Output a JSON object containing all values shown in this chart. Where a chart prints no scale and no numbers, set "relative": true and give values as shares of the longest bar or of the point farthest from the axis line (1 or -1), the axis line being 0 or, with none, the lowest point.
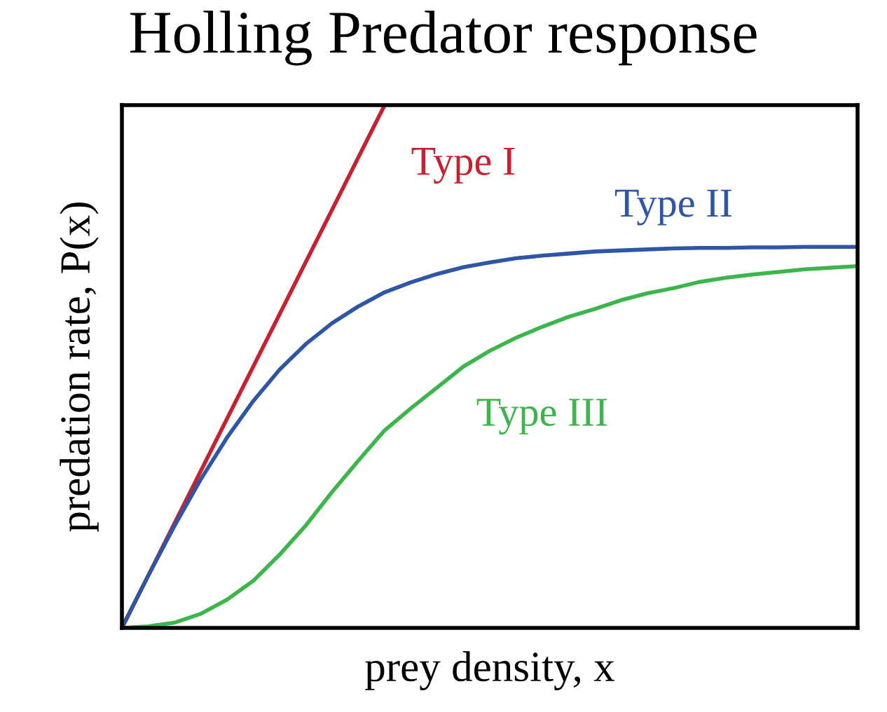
{
  "chart_data": {
    "type": "line",
    "title": "Holling Predator response",
    "xlabel": "prey density, x",
    "ylabel": "predation rate, P(x)",
    "relative": true,
    "categories": [
      null,
      null,
      null,
      null,
      null,
      null,
      null,
      null,
      null,
      null,
      null,
      null,
      null,
      null,
      null,
      null,
      null,
      null,
      null,
      null,
      null,
      null,
      null,
      null,
      null,
      null,
      null,
      null,
      null
    ],
    "series": [
      {
        "name": "Type I",
        "color": "#c8202f",
        "values": [
          0,
          0.1,
          0.2,
          0.3,
          0.4,
          0.5,
          0.6,
          0.7,
          0.8,
          0.9,
          1.0,
          null,
          null,
          null,
          null,
          null,
          null,
          null,
          null,
          null,
          null,
          null,
          null,
          null,
          null,
          null,
          null,
          null,
          null
        ]
      },
      {
        "name": "Type II",
        "color": "#2f56a6",
        "values": [
          0,
          0.1,
          0.195,
          0.284,
          0.364,
          0.434,
          0.494,
          0.543,
          0.583,
          0.615,
          0.642,
          0.661,
          0.677,
          0.69,
          0.699,
          0.707,
          0.712,
          0.716,
          0.72,
          0.722,
          0.724,
          0.726,
          0.727,
          0.727,
          0.728,
          0.728,
          0.729,
          0.729,
          0.729
        ]
      },
      {
        "name": "Type III",
        "color": "#3cb54a",
        "values": [
          0,
          0.003,
          0.01,
          0.027,
          0.054,
          0.09,
          0.14,
          0.196,
          0.26,
          0.32,
          0.378,
          0.42,
          0.46,
          0.5,
          0.53,
          0.555,
          0.576,
          0.595,
          0.61,
          0.627,
          0.64,
          0.65,
          0.662,
          0.67,
          0.676,
          0.681,
          0.686,
          0.689,
          0.692
        ]
      }
    ],
    "legend": false,
    "marker": "none",
    "line_style": "solid"
  }
}
